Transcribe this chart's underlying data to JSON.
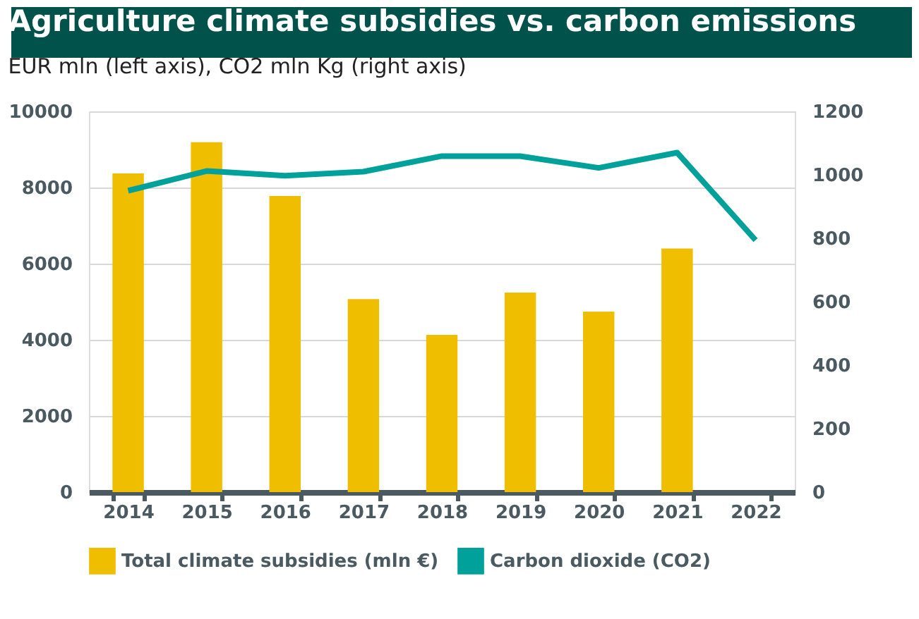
{
  "chart_data": {
    "type": "bar",
    "title": "Agriculture climate subsidies vs. carbon emissions",
    "subtitle": "EUR mln (left axis), CO2 mln Kg (right axis)",
    "categories": [
      "2014",
      "2015",
      "2016",
      "2017",
      "2018",
      "2019",
      "2020",
      "2021",
      "2022"
    ],
    "series": [
      {
        "name": "Total climate subsidies (mln €)",
        "color": "#f0be00",
        "values": [
          8370,
          9190,
          7780,
          5070,
          4130,
          5240,
          4740,
          6400,
          null
        ]
      },
      {
        "name": "Carbon dioxide (CO2)",
        "color": "#00a19a",
        "type": "line",
        "axis": "y2",
        "values": [
          950,
          1012,
          997,
          1010,
          1059,
          1059,
          1022,
          1070,
          794
        ]
      }
    ],
    "ylim": [
      0,
      10000
    ],
    "yticks": [
      0,
      2000,
      4000,
      6000,
      8000,
      10000
    ],
    "y2lim": [
      0,
      1200
    ],
    "y2ticks": [
      0,
      200,
      400,
      600,
      800,
      1000,
      1200
    ],
    "grid": "y",
    "legend": "bottom",
    "marker": "none",
    "line_style": "solid"
  }
}
